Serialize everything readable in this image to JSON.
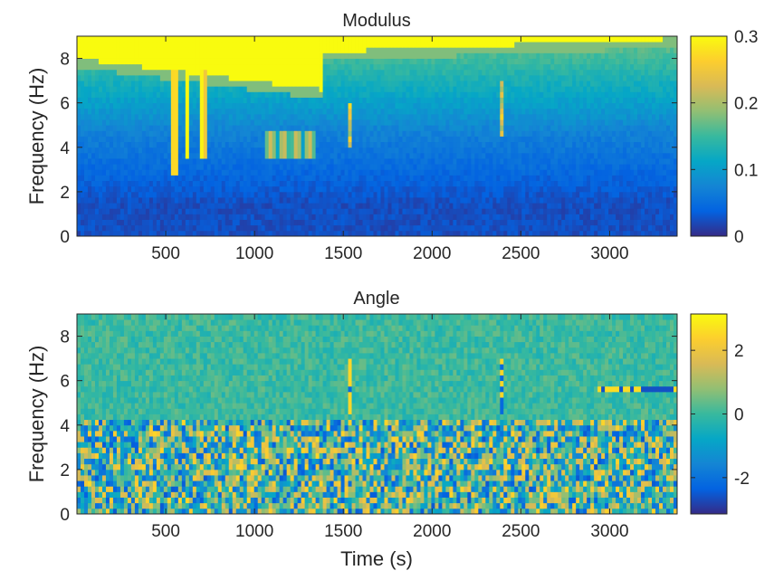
{
  "chart_data": [
    {
      "type": "heatmap",
      "title": "Modulus",
      "xlabel": "",
      "ylabel": "Frequency (Hz)",
      "xlim": [
        0,
        3380
      ],
      "ylim": [
        0,
        9
      ],
      "xticks": [
        500,
        1000,
        1500,
        2000,
        2500,
        3000
      ],
      "yticks": [
        0,
        2,
        4,
        6,
        8
      ],
      "colorbar": {
        "range": [
          0,
          0.3
        ],
        "ticks": [
          0,
          0.1,
          0.2,
          0.3
        ],
        "labels": [
          "0",
          "0.1",
          "0.2",
          "0.3"
        ]
      },
      "colormap": "parula",
      "features": [
        {
          "kind": "saturated-band-top",
          "x": [
            0,
            1380
          ],
          "y_from": [
            8.0,
            6.6
          ]
        },
        {
          "kind": "vertical-notch",
          "x": 550,
          "y_low": 2.8
        },
        {
          "kind": "vertical-notch",
          "x": 620,
          "y_low": 3.5
        },
        {
          "kind": "vertical-notch",
          "x": 705,
          "y_low": 3.4
        },
        {
          "kind": "oscillating-band",
          "x": [
            1050,
            1350
          ],
          "y": 4.1
        },
        {
          "kind": "vertical-line",
          "x": 1540,
          "y": [
            4.0,
            6.0
          ]
        },
        {
          "kind": "vertical-line",
          "x": 2390,
          "y": [
            4.5,
            7.0
          ]
        }
      ]
    },
    {
      "type": "heatmap",
      "title": "Angle",
      "xlabel": "Time (s)",
      "ylabel": "Frequency (Hz)",
      "xlim": [
        0,
        3380
      ],
      "ylim": [
        0,
        9
      ],
      "xticks": [
        500,
        1000,
        1500,
        2000,
        2500,
        3000
      ],
      "yticks": [
        0,
        2,
        4,
        6,
        8
      ],
      "colorbar": {
        "range": [
          -3.1416,
          3.1416
        ],
        "ticks": [
          -2,
          0,
          2
        ],
        "labels": [
          "-2",
          "0",
          "2"
        ]
      },
      "colormap": "parula",
      "features": [
        {
          "kind": "noise-band",
          "y": [
            0,
            4.2
          ]
        },
        {
          "kind": "vertical-line",
          "x": 1540,
          "y": [
            4.5,
            7.0
          ]
        },
        {
          "kind": "vertical-line",
          "x": 2390,
          "y": [
            4.5,
            7.0
          ]
        },
        {
          "kind": "horizontal-line",
          "x": [
            2940,
            3380
          ],
          "y": 5.7
        }
      ]
    }
  ]
}
